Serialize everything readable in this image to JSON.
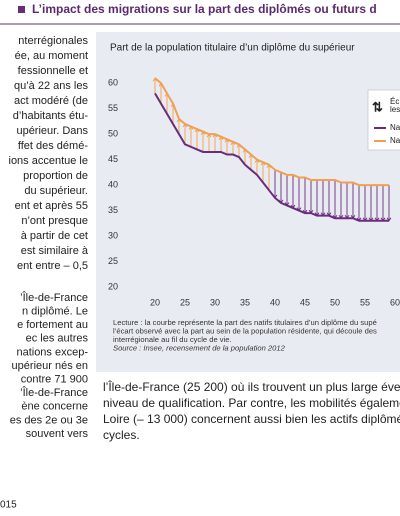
{
  "header": {
    "title": "L’impact des migrations sur la part des diplômés ou futurs d"
  },
  "left_column": {
    "paragraphs": [
      [
        "nterrégionales",
        "ée, au moment",
        "fessionnelle et",
        "qu’à 22 ans les",
        "act modéré (de",
        "d’habitants étu-",
        "upérieur. Dans",
        "ffet des démé-",
        "ions accentue le",
        "proportion de",
        "du supérieur.",
        "ent et après 55",
        "n’ont presque",
        "à partir de cet",
        "est similaire à",
        "ent entre – 0,5"
      ],
      [
        "’Île-de-France",
        "n diplômé. Le",
        "e fortement au",
        "ec les autres",
        "nations excep-",
        "upérieur nés en",
        "contre 71 900",
        "’Île-de-France",
        "ène concerne",
        "es des 2e ou 3e",
        "souvent vers"
      ]
    ]
  },
  "chart_data": {
    "type": "line",
    "title": "Part de la population titulaire d’un diplôme du supérieur",
    "x": [
      20,
      21,
      22,
      23,
      24,
      25,
      26,
      27,
      28,
      29,
      30,
      31,
      32,
      33,
      34,
      35,
      36,
      37,
      38,
      39,
      40,
      41,
      42,
      43,
      44,
      45,
      46,
      47,
      48,
      49,
      50,
      51,
      52,
      53,
      54,
      55,
      56,
      57,
      58,
      59
    ],
    "series": [
      {
        "name": "Na",
        "color": "#6a2c7a",
        "values": [
          58,
          56,
          54,
          52,
          50,
          48,
          47.5,
          47,
          46.5,
          46.5,
          46.5,
          46.5,
          46,
          46,
          45.5,
          44,
          43,
          42,
          40.5,
          39,
          37.5,
          36.5,
          36,
          35.5,
          35,
          34.5,
          34.5,
          34,
          34,
          34,
          33.5,
          33.5,
          33.5,
          33.5,
          33,
          33,
          33,
          33,
          33,
          33
        ]
      },
      {
        "name": "Na",
        "color": "#f0a050",
        "values": [
          61,
          60,
          58,
          56,
          53,
          52,
          51.5,
          51,
          50.5,
          50,
          50,
          49.5,
          49,
          48.5,
          48,
          47,
          46,
          45,
          44.5,
          44,
          43,
          42.5,
          42,
          42,
          41.5,
          41.5,
          41,
          41,
          41,
          41,
          41,
          40.5,
          40.5,
          40.5,
          40,
          40,
          40,
          40,
          40,
          40
        ]
      }
    ],
    "legend": {
      "title_lines": [
        "Éc",
        "les"
      ]
    },
    "xlim": [
      16,
      60
    ],
    "xticks": [
      20,
      25,
      30,
      35,
      40,
      45,
      50,
      55,
      60
    ],
    "ylim": [
      20,
      62
    ],
    "yticks": [
      20,
      25,
      30,
      35,
      40,
      45,
      50,
      55,
      60
    ],
    "grid": false,
    "caption": [
      "Lecture : la courbe représente la part des natifs titulaires d’un diplôme du supé",
      "l’écart observé avec la part au sein de la population résidente, qui découle des",
      "interrégionale au fil du cycle de vie."
    ],
    "source": "Source : Insee, recensement de la population 2012"
  },
  "right_text": [
    "l’Île-de-France (25 200) où ils trouvent un plus large éven",
    "niveau de qualification. Par contre, les mobilités égaleme",
    "Loire (– 13 000) concernent aussi bien les actifs diplômés",
    "cycles."
  ],
  "footer": "015"
}
